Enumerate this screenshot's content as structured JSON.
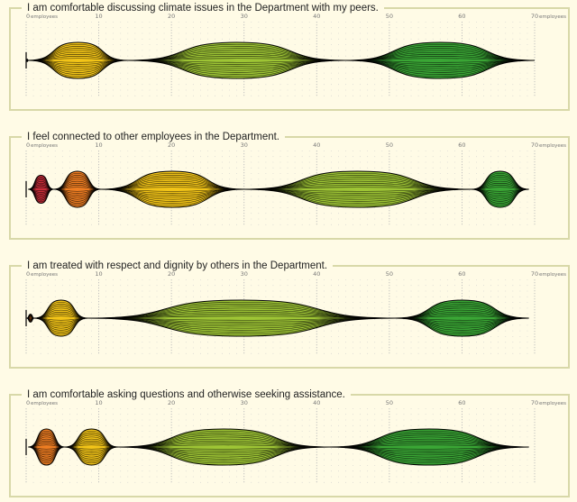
{
  "chart_data": [
    {
      "type": "area",
      "title": "I am comfortable discussing climate issues in the Department with my peers.",
      "x_unit": "employees",
      "xlim": [
        0,
        70
      ],
      "ticks": [
        0,
        10,
        20,
        30,
        40,
        50,
        60,
        70
      ],
      "segments": [
        {
          "start": 0,
          "end": 0.3,
          "color": "#2e7d32"
        },
        {
          "start": 0.3,
          "end": 14,
          "color": "#f2c418"
        },
        {
          "start": 14,
          "end": 44,
          "color": "#9ec535"
        },
        {
          "start": 44,
          "end": 70,
          "color": "#3aa635"
        }
      ]
    },
    {
      "type": "area",
      "title": "I feel connected to other employees in the Department.",
      "x_unit": "employees",
      "xlim": [
        0,
        70
      ],
      "ticks": [
        0,
        10,
        20,
        30,
        40,
        50,
        60,
        70
      ],
      "segments": [
        {
          "start": 0.3,
          "end": 3.8,
          "color": "#cc2d3a"
        },
        {
          "start": 3.8,
          "end": 10.3,
          "color": "#ee7d22"
        },
        {
          "start": 10.3,
          "end": 30,
          "color": "#f2c418"
        },
        {
          "start": 30,
          "end": 61.3,
          "color": "#9ec535"
        },
        {
          "start": 61.3,
          "end": 69.2,
          "color": "#3aa635"
        }
      ]
    },
    {
      "type": "area",
      "title": "I am treated with respect and dignity by others in the Department.",
      "x_unit": "employees",
      "xlim": [
        0,
        70
      ],
      "ticks": [
        0,
        10,
        20,
        30,
        40,
        50,
        60,
        70
      ],
      "segments": [
        {
          "start": 0.1,
          "end": 1.1,
          "color": "#ee7d22"
        },
        {
          "start": 1.1,
          "end": 8.5,
          "color": "#f2c418"
        },
        {
          "start": 8.5,
          "end": 50.8,
          "color": "#9ec535"
        },
        {
          "start": 50.8,
          "end": 69.2,
          "color": "#3aa635"
        }
      ]
    },
    {
      "type": "area",
      "title": "I am comfortable asking questions and otherwise seeking assistance.",
      "x_unit": "employees",
      "xlim": [
        0,
        70
      ],
      "ticks": [
        0,
        10,
        20,
        30,
        40,
        50,
        60,
        70
      ],
      "segments": [
        {
          "start": 0.3,
          "end": 5.3,
          "color": "#ee7d22"
        },
        {
          "start": 5.3,
          "end": 12.7,
          "color": "#f2c418"
        },
        {
          "start": 12.7,
          "end": 41.7,
          "color": "#9ec535"
        },
        {
          "start": 41.7,
          "end": 69.2,
          "color": "#3aa635"
        }
      ]
    }
  ]
}
